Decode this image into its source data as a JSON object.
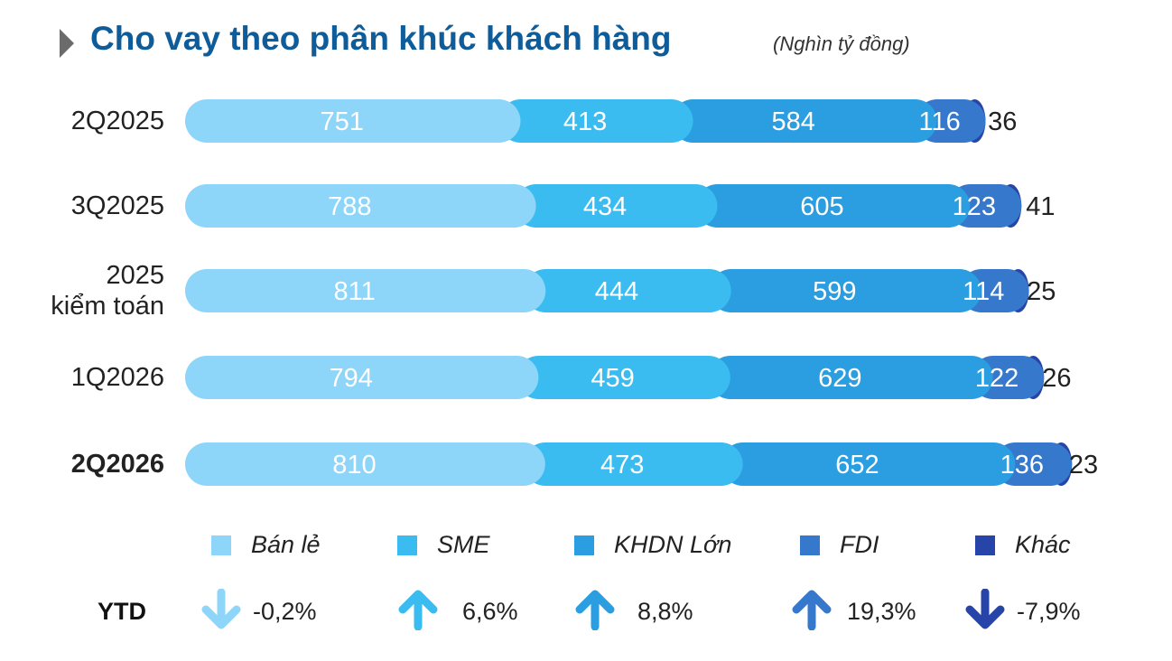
{
  "title": "Cho vay theo phân khúc khách hàng",
  "subtitle": "(Nghìn tỷ đồng)",
  "colors": {
    "title": "#0E5C9A",
    "ban_le": "#8DD5F9",
    "sme": "#3ABCF0",
    "khdn_lon": "#2A9EE0",
    "fdi": "#3578CC",
    "khac": "#2745A8"
  },
  "chart_data": {
    "type": "bar",
    "orientation": "horizontal",
    "stacked": true,
    "categories": [
      "2Q2025",
      "3Q2025",
      "2025\nkiểm toán",
      "1Q2026",
      "2Q2026"
    ],
    "category_lines": [
      [
        "2Q2025"
      ],
      [
        "3Q2025"
      ],
      [
        "2025",
        "kiểm toán"
      ],
      [
        "1Q2026"
      ],
      [
        "2Q2026"
      ]
    ],
    "series": [
      {
        "name": "Bán lẻ",
        "values": [
          751,
          788,
          811,
          794,
          810
        ]
      },
      {
        "name": "SME",
        "values": [
          413,
          434,
          444,
          459,
          473
        ]
      },
      {
        "name": "KHDN Lớn",
        "values": [
          584,
          605,
          599,
          629,
          652
        ]
      },
      {
        "name": "FDI",
        "values": [
          116,
          123,
          114,
          122,
          136
        ]
      },
      {
        "name": "Khác",
        "values": [
          36,
          41,
          25,
          26,
          23
        ]
      }
    ],
    "legend_position": "bottom",
    "grid": false
  },
  "ytd": {
    "label": "YTD",
    "items": [
      {
        "series": "Bán lẻ",
        "value": "-0,2%",
        "direction": "down",
        "icon": "arrow-down-icon"
      },
      {
        "series": "SME",
        "value": "6,6%",
        "direction": "up",
        "icon": "arrow-up-icon"
      },
      {
        "series": "KHDN Lớn",
        "value": "8,8%",
        "direction": "up",
        "icon": "arrow-up-icon"
      },
      {
        "series": "FDI",
        "value": "19,3%",
        "direction": "up",
        "icon": "arrow-up-icon"
      },
      {
        "series": "Khác",
        "value": "-7,9%",
        "direction": "down",
        "icon": "arrow-down-icon"
      }
    ]
  }
}
